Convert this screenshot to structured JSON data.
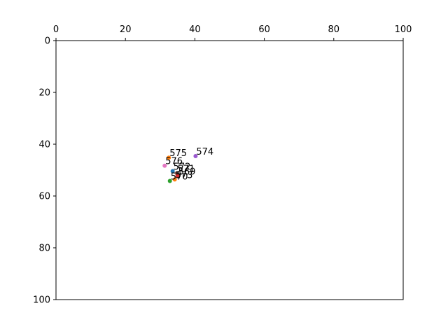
{
  "chart_data": {
    "type": "scatter",
    "title": "",
    "xlabel": "",
    "ylabel": "",
    "xlim": [
      0,
      100
    ],
    "ylim": [
      0,
      100
    ],
    "x_axis_position": "top",
    "y_axis_inverted": true,
    "grid": false,
    "x_ticks": [
      0,
      20,
      40,
      60,
      80,
      100
    ],
    "y_ticks": [
      0,
      20,
      40,
      60,
      80,
      100
    ],
    "points": [
      {
        "label": "574",
        "x": 40.2,
        "y": 44.6,
        "color": "#9b59d0"
      },
      {
        "label": "575",
        "x": 32.5,
        "y": 45.2,
        "color": "#ff7f0e"
      },
      {
        "label": "576",
        "x": 31.3,
        "y": 48.3,
        "color": "#e377c2"
      },
      {
        "label": "572",
        "x": 33.6,
        "y": 50.4,
        "color": "#1f77b4"
      },
      {
        "label": "571",
        "x": 34.8,
        "y": 51.2,
        "color": "#8c564b"
      },
      {
        "label": "569",
        "x": 35.0,
        "y": 52.3,
        "color": "#d62728"
      },
      {
        "label": "570",
        "x": 32.8,
        "y": 54.2,
        "color": "#2ca02c"
      },
      {
        "label": "573",
        "x": 34.2,
        "y": 53.6,
        "color": "#ff7f0e"
      }
    ]
  }
}
